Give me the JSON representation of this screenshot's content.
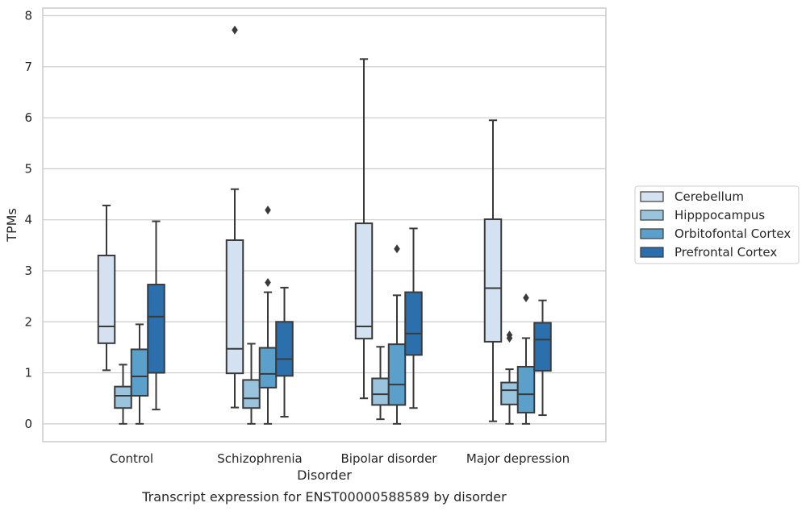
{
  "chart_data": {
    "type": "box",
    "title": "",
    "caption": "Transcript expression for ENST00000588589 by disorder",
    "xlabel": "Disorder",
    "ylabel": "TPMs",
    "ylim": [
      -0.35,
      8.15
    ],
    "yticks": [
      "0",
      "1",
      "2",
      "3",
      "4",
      "5",
      "6",
      "7",
      "8"
    ],
    "grid": "horizontal",
    "legend_position": "right",
    "categories": [
      "Control",
      "Schizophrenia",
      "Bipolar disorder",
      "Major depression"
    ],
    "series": [
      {
        "name": "Cerebellum",
        "color": "#d3e1f0",
        "boxes": [
          {
            "whislo": 1.05,
            "q1": 1.58,
            "med": 1.91,
            "q3": 3.3,
            "whishi": 4.28,
            "fliers": []
          },
          {
            "whislo": 0.32,
            "q1": 0.99,
            "med": 1.47,
            "q3": 3.6,
            "whishi": 4.6,
            "fliers": [
              7.72
            ]
          },
          {
            "whislo": 0.5,
            "q1": 1.67,
            "med": 1.91,
            "q3": 3.93,
            "whishi": 7.15,
            "fliers": []
          },
          {
            "whislo": 0.05,
            "q1": 1.61,
            "med": 2.66,
            "q3": 4.01,
            "whishi": 5.95,
            "fliers": []
          }
        ]
      },
      {
        "name": "Hipppocampus",
        "color": "#9ac3dd",
        "boxes": [
          {
            "whislo": 0.0,
            "q1": 0.31,
            "med": 0.55,
            "q3": 0.73,
            "whishi": 1.16,
            "fliers": []
          },
          {
            "whislo": 0.0,
            "q1": 0.31,
            "med": 0.5,
            "q3": 0.86,
            "whishi": 1.57,
            "fliers": []
          },
          {
            "whislo": 0.09,
            "q1": 0.37,
            "med": 0.58,
            "q3": 0.89,
            "whishi": 1.51,
            "fliers": []
          },
          {
            "whislo": 0.0,
            "q1": 0.38,
            "med": 0.66,
            "q3": 0.81,
            "whishi": 1.07,
            "fliers": [
              1.68,
              1.74
            ]
          }
        ]
      },
      {
        "name": "Orbitofontal Cortex",
        "color": "#5b9fcb",
        "boxes": [
          {
            "whislo": 0.0,
            "q1": 0.55,
            "med": 0.93,
            "q3": 1.46,
            "whishi": 1.95,
            "fliers": []
          },
          {
            "whislo": 0.0,
            "q1": 0.71,
            "med": 0.98,
            "q3": 1.49,
            "whishi": 2.58,
            "fliers": [
              2.77,
              4.19
            ]
          },
          {
            "whislo": 0.0,
            "q1": 0.37,
            "med": 0.77,
            "q3": 1.56,
            "whishi": 2.52,
            "fliers": [
              3.43
            ]
          },
          {
            "whislo": 0.0,
            "q1": 0.22,
            "med": 0.58,
            "q3": 1.12,
            "whishi": 1.68,
            "fliers": [
              2.47
            ]
          }
        ]
      },
      {
        "name": "Prefrontal Cortex",
        "color": "#2b6fad",
        "boxes": [
          {
            "whislo": 0.28,
            "q1": 1.0,
            "med": 2.1,
            "q3": 2.73,
            "whishi": 3.97,
            "fliers": []
          },
          {
            "whislo": 0.14,
            "q1": 0.94,
            "med": 1.27,
            "q3": 2.0,
            "whishi": 2.67,
            "fliers": []
          },
          {
            "whislo": 0.31,
            "q1": 1.35,
            "med": 1.77,
            "q3": 2.58,
            "whishi": 3.83,
            "fliers": []
          },
          {
            "whislo": 0.17,
            "q1": 1.04,
            "med": 1.65,
            "q3": 1.98,
            "whishi": 2.42,
            "fliers": []
          }
        ]
      }
    ],
    "style": {
      "line_color": "#3a3a3a",
      "grid_color": "#cccccc",
      "frame_color": "#cccccc",
      "background": "#ffffff"
    }
  }
}
